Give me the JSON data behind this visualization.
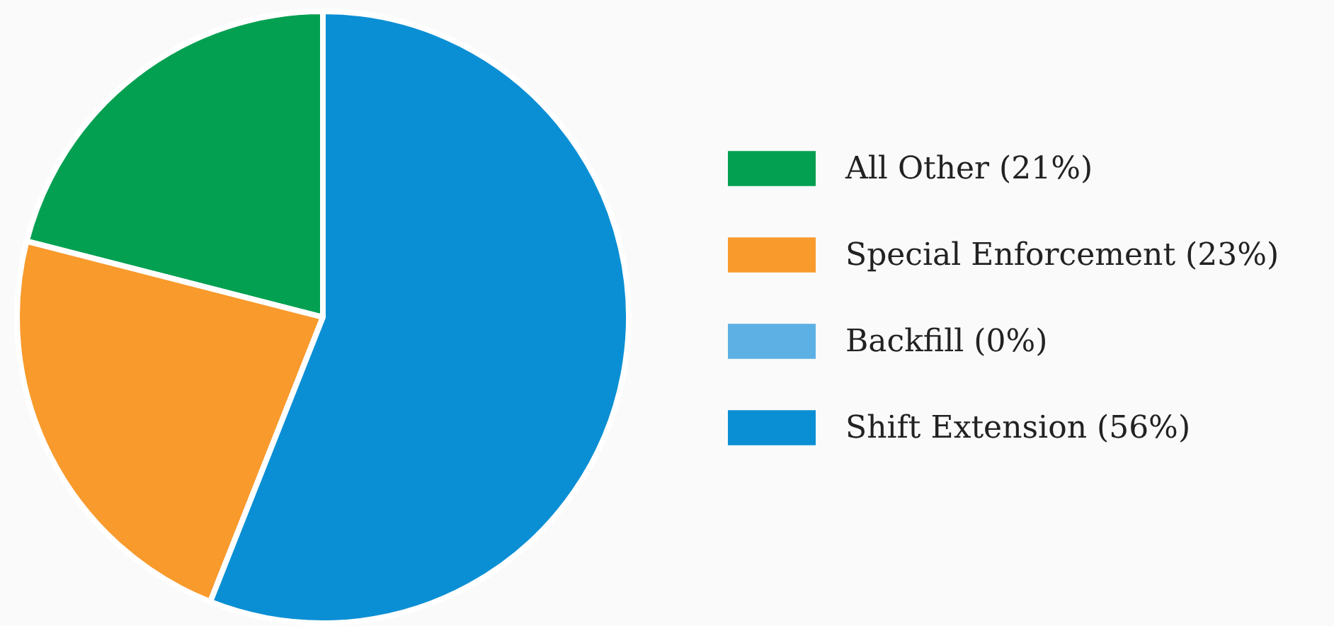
{
  "chart_data": {
    "type": "pie",
    "categories": [
      "All Other (21%)",
      "Special Enforcement (23%)",
      "Backfill (0%)",
      "Shift Extension (56%)"
    ],
    "values": [
      21,
      23,
      0,
      56
    ],
    "colors": [
      "#04a052",
      "#f89a2c",
      "#5cb0e4",
      "#0b8fd4"
    ],
    "legend": "right"
  }
}
